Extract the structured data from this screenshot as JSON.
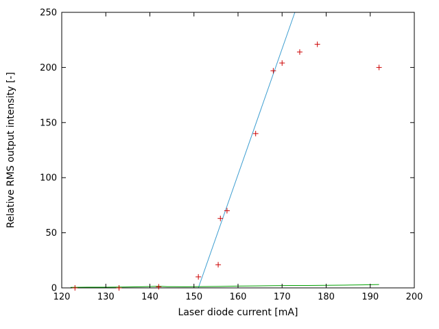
{
  "figure": {
    "background": "#ffffff",
    "border_color": "#000000",
    "text_color": "#000000"
  },
  "chart_data": {
    "type": "scatter",
    "title": "",
    "xlabel": "Laser diode current [mA]",
    "ylabel": "Relative RMS output intensity [-]",
    "xlim": [
      120,
      200
    ],
    "ylim": [
      0,
      250
    ],
    "xticks": [
      120,
      130,
      140,
      150,
      160,
      170,
      180,
      190,
      200
    ],
    "yticks": [
      0,
      50,
      100,
      150,
      200,
      250
    ],
    "grid": false,
    "legend": "none",
    "series": [
      {
        "name": "measured-points",
        "type": "points",
        "marker": "plus",
        "color": "#cc0000",
        "points": [
          [
            123,
            0
          ],
          [
            133,
            0
          ],
          [
            142,
            1
          ],
          [
            151,
            10
          ],
          [
            155.5,
            21
          ],
          [
            156,
            63
          ],
          [
            157.5,
            70
          ],
          [
            164,
            140
          ],
          [
            168,
            197
          ],
          [
            170,
            204
          ],
          [
            174,
            214
          ],
          [
            178,
            221
          ],
          [
            192,
            200
          ]
        ]
      },
      {
        "name": "linear-fit-line",
        "type": "line",
        "color": "#3c9dd0",
        "points": [
          [
            151,
            0
          ],
          [
            172.9,
            250
          ]
        ]
      },
      {
        "name": "baseline-curve",
        "type": "line",
        "color": "#00a000",
        "points": [
          [
            122,
            0.5
          ],
          [
            126,
            0.6
          ],
          [
            130,
            0.6
          ],
          [
            134,
            0.8
          ],
          [
            138,
            1.0
          ],
          [
            142,
            1.5
          ],
          [
            144,
            1.1
          ],
          [
            148,
            1.0
          ],
          [
            152,
            1.2
          ],
          [
            156,
            1.3
          ],
          [
            160,
            1.6
          ],
          [
            164,
            1.8
          ],
          [
            168,
            2.0
          ],
          [
            172,
            2.2
          ],
          [
            176,
            2.2
          ],
          [
            180,
            2.3
          ],
          [
            184,
            2.5
          ],
          [
            188,
            2.7
          ],
          [
            192,
            3.0
          ]
        ]
      }
    ]
  }
}
